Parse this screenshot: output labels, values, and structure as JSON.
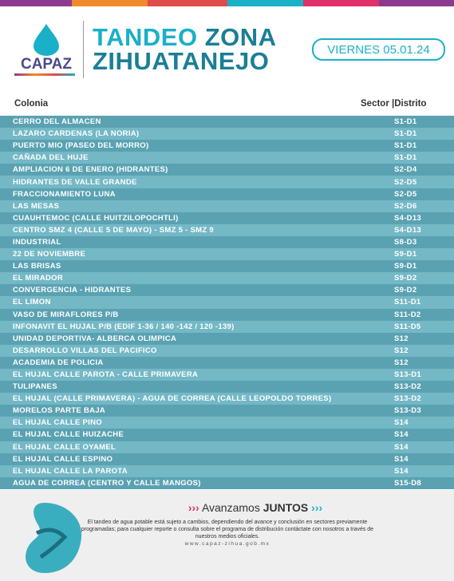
{
  "logo": {
    "name": "CAPAZ"
  },
  "header": {
    "title_word_1": "TANDEO",
    "title_word_2": "ZONA",
    "title_line_2": "ZIHUATANEJO",
    "date": "VIERNES 05.01.24"
  },
  "table": {
    "columns": [
      "Colonia",
      "Sector |Distrito"
    ],
    "rows": [
      [
        "CERRO DEL ALMACEN",
        "S1-D1"
      ],
      [
        "LAZARO CARDENAS (LA NORIA)",
        "S1-D1"
      ],
      [
        "PUERTO MIO (PASEO DEL MORRO)",
        "S1-D1"
      ],
      [
        "CAÑADA DEL HUJE",
        "S1-D1"
      ],
      [
        "AMPLIACION 6 DE ENERO (HIDRANTES)",
        "S2-D4"
      ],
      [
        "HIDRANTES DE VALLE GRANDE",
        "S2-D5"
      ],
      [
        "FRACCIONAMIENTO LUNA",
        "S2-D5"
      ],
      [
        "LAS MESAS",
        "S2-D6"
      ],
      [
        "CUAUHTEMOC (CALLE HUITZILOPOCHTLI)",
        "S4-D13"
      ],
      [
        "CENTRO SMZ 4 (CALLE 5 DE MAYO) - SMZ 5 - SMZ 9",
        "S4-D13"
      ],
      [
        "INDUSTRIAL",
        "S8-D3"
      ],
      [
        "22 DE NOVIEMBRE",
        "S9-D1"
      ],
      [
        "LAS BRISAS",
        "S9-D1"
      ],
      [
        "EL MIRADOR",
        "S9-D2"
      ],
      [
        "CONVERGENCIA - HIDRANTES",
        "S9-D2"
      ],
      [
        "EL LIMON",
        "S11-D1"
      ],
      [
        "VASO DE MIRAFLORES P/B",
        "S11-D2"
      ],
      [
        "INFONAVIT EL HUJAL P/B (EDIF 1-36 / 140 -142 / 120 -139)",
        "S11-D5"
      ],
      [
        "UNIDAD DEPORTIVA- ALBERCA OLIMPICA",
        "S12"
      ],
      [
        "DESARROLLO VILLAS DEL PACIFICO",
        "S12"
      ],
      [
        "ACADEMIA DE POLICIA",
        "S12"
      ],
      [
        "EL HUJAL CALLE PAROTA  - CALLE PRIMAVERA",
        "S13-D1"
      ],
      [
        "TULIPANES",
        "S13-D2"
      ],
      [
        "EL HUJAL (CALLE PRIMAVERA) - AGUA DE CORREA (CALLE LEOPOLDO TORRES)",
        "S13-D2"
      ],
      [
        "MORELOS PARTE BAJA",
        "S13-D3"
      ],
      [
        "EL HUJAL CALLE PINO",
        "S14"
      ],
      [
        "EL HUJAL CALLE HUIZACHE",
        "S14"
      ],
      [
        "EL HUJAL CALLE OYAMEL",
        "S14"
      ],
      [
        "EL HUJAL CALLE ESPINO",
        "S14"
      ],
      [
        "EL HUJAL CALLE LA PAROTA",
        "S14"
      ],
      [
        "AGUA DE CORREA (CENTRO Y CALLE MANGOS)",
        "S15-D8"
      ]
    ]
  },
  "footer": {
    "slogan_light": "Avanzamos",
    "slogan_bold": "JUNTOS",
    "notice": "El tandeo de agua potable está sujeto a cambios, dependiendo del avance y conclusión en sectores previamente programadas; para cualquier reporte o consulta sobre el programa de distribución contáctate con nosotros a través de nuestros medios oficiales.",
    "url": "www.capaz-zihua.gob.mx"
  }
}
